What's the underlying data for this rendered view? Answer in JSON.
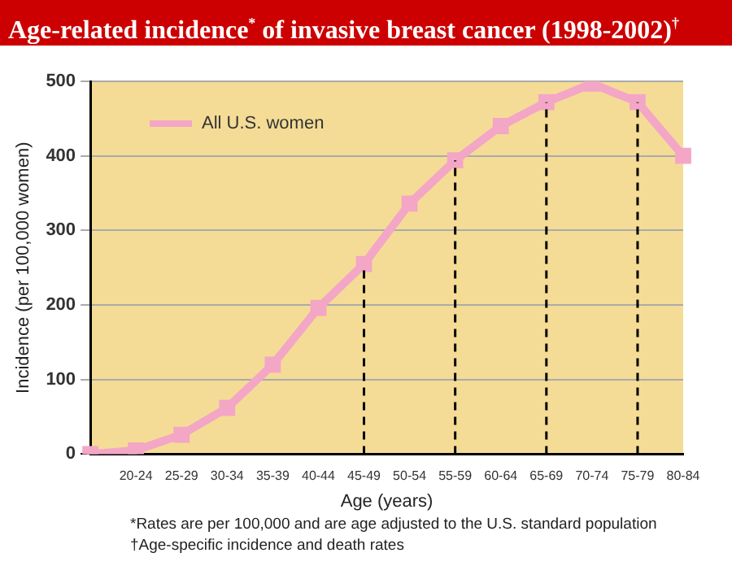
{
  "chart_data": {
    "type": "line",
    "title": "Age-related incidence$^{*}$ of invasive breast cancer (1998-2002)$^{†}$",
    "xlabel": "Age (years)",
    "ylabel": "Incidence (per 100,000 women)",
    "categories": [
      null,
      "20-24",
      "25-29",
      "30-34",
      "35-39",
      "40-44",
      "45-49",
      "50-54",
      "55-59",
      "60-64",
      "65-69",
      "70-74",
      "75-79",
      "80-84"
    ],
    "series": [
      {
        "name": "All U.S. women",
        "color": "#f4a6c6",
        "values": [
          0,
          5,
          26,
          62,
          120,
          196,
          255,
          336,
          394,
          440,
          472,
          497,
          472,
          400
        ]
      }
    ],
    "ylim": [
      0,
      500
    ],
    "yticks": [
      0,
      100,
      200,
      300,
      400,
      500
    ],
    "grid": "y",
    "legend": "top left",
    "marker": "square",
    "line_style": "solid",
    "ref_lines": [
      {
        "axis": "x",
        "value": "45-49",
        "line_style": "dashed",
        "color": "#000000"
      },
      {
        "axis": "x",
        "value": "55-59",
        "line_style": "dashed",
        "color": "#000000"
      },
      {
        "axis": "x",
        "value": "65-69",
        "line_style": "dashed",
        "color": "#000000"
      },
      {
        "axis": "x",
        "value": "75-79",
        "line_style": "dashed",
        "color": "#000000"
      }
    ],
    "annotations": [
      "*Rates are per 100,000 and are age adjusted to the U.S. standard population",
      "†Age-specific incidence and death rates"
    ]
  }
}
